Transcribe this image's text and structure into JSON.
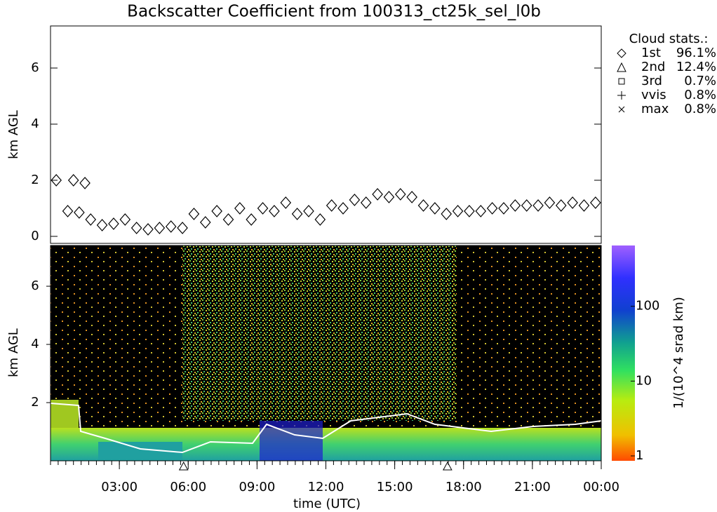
{
  "chart_data": {
    "type": "scatter",
    "title": "Backscatter Coefficient from 100313_ct25k_sel_l0b",
    "x_label": "time (UTC)",
    "y_label": "km AGL",
    "profile_y_label": "km AGL",
    "colorbar_label": "1/(10^4 srad km)",
    "xlim": [
      0,
      24
    ],
    "xticks": [
      {
        "value": 3,
        "label": "03:00"
      },
      {
        "value": 6,
        "label": "06:00"
      },
      {
        "value": 9,
        "label": "09:00"
      },
      {
        "value": 12,
        "label": "12:00"
      },
      {
        "value": 15,
        "label": "15:00"
      },
      {
        "value": 18,
        "label": "18:00"
      },
      {
        "value": 21,
        "label": "21:00"
      },
      {
        "value": 24,
        "label": "00:00"
      }
    ],
    "ylim": [
      -0.25,
      7.5
    ],
    "yticks": [
      0,
      2,
      4,
      6
    ],
    "profile_ylim": [
      0,
      7.4
    ],
    "profile_yticks": [
      2,
      4,
      6
    ],
    "clim": [
      0.86,
      650
    ],
    "cticks": [
      1,
      10,
      100
    ],
    "color_scale": "log",
    "marker_times": [
      5.8,
      17.3
    ],
    "series": [
      {
        "name": "1st",
        "color": "#000000",
        "x": [
          0.25,
          0.75,
          1.0,
          1.25,
          1.5,
          1.75,
          2.25,
          2.75,
          3.25,
          3.75,
          4.25,
          4.75,
          5.25,
          5.75,
          6.25,
          6.75,
          7.25,
          7.75,
          8.25,
          8.75,
          9.25,
          9.75,
          10.25,
          10.75,
          11.25,
          11.75,
          12.25,
          12.75,
          13.25,
          13.75,
          14.25,
          14.75,
          15.25,
          15.75,
          16.25,
          16.75,
          17.25,
          17.75,
          18.25,
          18.75,
          19.25,
          19.75,
          20.25,
          20.75,
          21.25,
          21.75,
          22.25,
          22.75,
          23.25,
          23.75
        ],
        "values": [
          2.0,
          0.9,
          2.0,
          0.85,
          1.9,
          0.6,
          0.4,
          0.45,
          0.6,
          0.3,
          0.25,
          0.3,
          0.35,
          0.3,
          0.8,
          0.5,
          0.9,
          0.6,
          1.0,
          0.6,
          1.0,
          0.9,
          1.2,
          0.8,
          0.9,
          0.6,
          1.1,
          1.0,
          1.3,
          1.2,
          1.5,
          1.4,
          1.5,
          1.4,
          1.1,
          1.0,
          0.8,
          0.9,
          0.9,
          0.9,
          1.0,
          1.0,
          1.1,
          1.1,
          1.1,
          1.2,
          1.1,
          1.2,
          1.1,
          1.2
        ]
      }
    ],
    "cloud_stats": {
      "title": "Cloud stats.:",
      "names": [
        "1st",
        "2nd",
        "3rd",
        "vvis",
        "max"
      ],
      "values": [
        96.1,
        12.4,
        0.7,
        0.8,
        0.8
      ],
      "value_labels": [
        "96.1%",
        "12.4%",
        "0.7%",
        "0.8%",
        "0.8%"
      ]
    }
  }
}
